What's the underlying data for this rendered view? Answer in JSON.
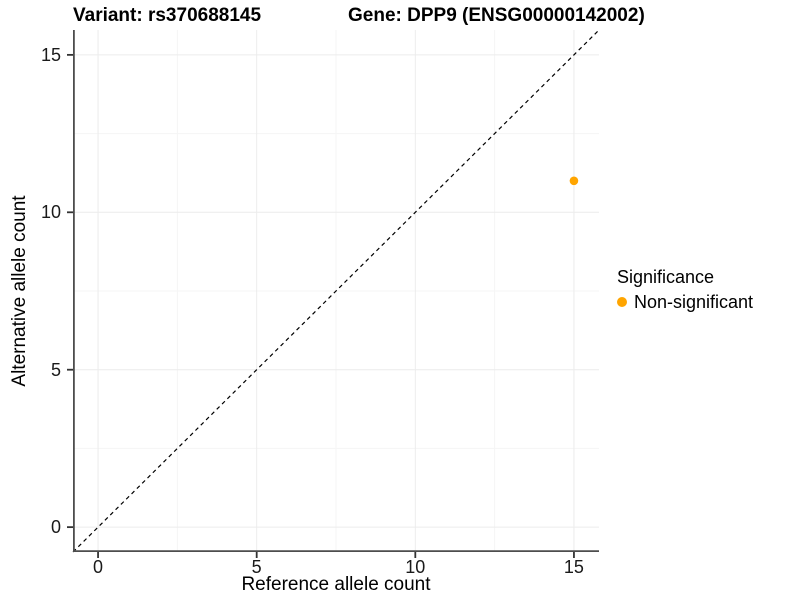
{
  "header": {
    "title_left": "Variant: rs370688145",
    "title_right": "Gene: DPP9 (ENSG00000142002)"
  },
  "chart_data": {
    "type": "scatter",
    "xlabel": "Reference allele count",
    "ylabel": "Alternative allele count",
    "xlim": [
      -0.79,
      15.79
    ],
    "ylim": [
      -0.79,
      15.79
    ],
    "x_ticks": [
      0,
      5,
      10,
      15
    ],
    "y_ticks": [
      0,
      5,
      10,
      15
    ],
    "x_minor_ticks": [
      2.5,
      7.5,
      12.5
    ],
    "y_minor_ticks": [
      2.5,
      7.5,
      12.5
    ],
    "grid": true,
    "points": [
      {
        "x": 15,
        "y": 11,
        "series": "Non-significant",
        "color": "#FFA500",
        "radius": 4.3
      }
    ],
    "reference_line": {
      "type": "identity",
      "style": "dashed",
      "color": "#000000"
    },
    "legend": {
      "title": "Significance",
      "position": "right",
      "items": [
        {
          "label": "Non-significant",
          "color": "#FFA500"
        }
      ]
    }
  },
  "colors": {
    "grid_major": "#ececec",
    "grid_minor": "#f5f5f5",
    "axis_line": "#4d4d4d",
    "tick_mark": "#333333",
    "tick_text": "#1a1a1a",
    "point": "#FFA500"
  }
}
